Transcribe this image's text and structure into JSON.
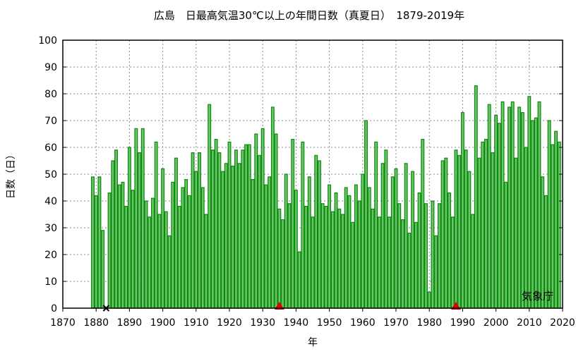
{
  "chart_data": {
    "type": "bar",
    "title": "広島　日最高気温30℃以上の年間日数（真夏日）　1879-2019年",
    "xlabel": "年",
    "ylabel": "日数（日）",
    "credit": "気象庁",
    "xlim": [
      1870,
      2020
    ],
    "ylim": [
      0,
      100
    ],
    "xticks": [
      1870,
      1880,
      1890,
      1900,
      1910,
      1920,
      1930,
      1940,
      1950,
      1960,
      1970,
      1980,
      1990,
      2000,
      2010,
      2020
    ],
    "yticks": [
      0,
      10,
      20,
      30,
      40,
      50,
      60,
      70,
      80,
      90,
      100
    ],
    "grid": true,
    "colors": {
      "fill": "#6cc46c",
      "stroke": "#0b8a0b",
      "marker": "#e00000"
    },
    "missing_years": [
      1883
    ],
    "relocation_years": [
      1935,
      1988
    ],
    "years_start": 1879,
    "values": [
      49,
      42,
      49,
      29,
      null,
      43,
      55,
      59,
      46,
      47,
      38,
      60,
      44,
      67,
      58,
      67,
      40,
      34,
      41,
      62,
      35,
      52,
      36,
      27,
      47,
      56,
      38,
      45,
      48,
      42,
      58,
      51,
      58,
      45,
      35,
      76,
      59,
      63,
      58,
      51,
      54,
      62,
      53,
      59,
      54,
      59,
      61,
      61,
      48,
      65,
      57,
      67,
      46,
      49,
      75,
      65,
      37,
      33,
      50,
      39,
      63,
      44,
      21,
      62,
      38,
      49,
      34,
      57,
      55,
      39,
      38,
      46,
      36,
      43,
      37,
      35,
      45,
      42,
      32,
      46,
      40,
      50,
      70,
      45,
      37,
      62,
      34,
      54,
      59,
      34,
      49,
      52,
      39,
      33,
      54,
      28,
      51,
      32,
      43,
      63,
      39,
      6,
      40,
      27,
      39,
      55,
      56,
      43,
      34,
      59,
      57,
      73,
      59,
      51,
      35,
      83,
      56,
      62,
      63,
      76,
      58,
      72,
      69,
      77,
      47,
      75,
      77,
      56,
      75,
      73,
      60,
      79,
      70,
      71,
      77,
      49,
      42,
      70,
      61,
      66,
      62
    ]
  }
}
